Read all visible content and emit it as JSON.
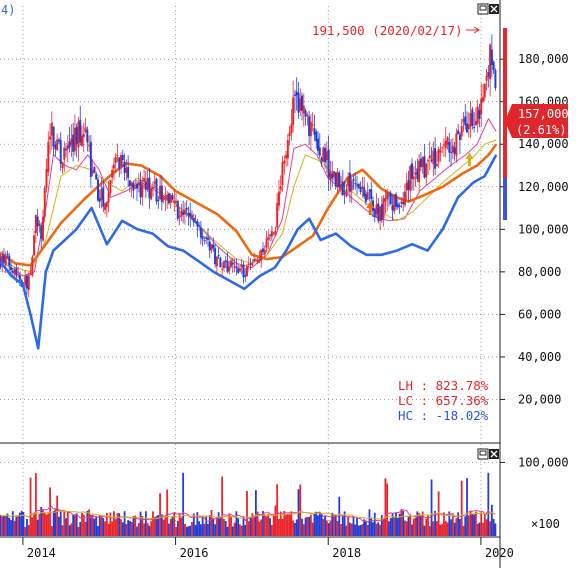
{
  "window": {
    "title_fragment": "4)",
    "buttons": [
      "restore-button",
      "close-button"
    ]
  },
  "chart_data": [
    {
      "type": "candlestick",
      "panel": "price",
      "yticks": [
        20000,
        40000,
        60000,
        80000,
        100000,
        120000,
        140000,
        160000,
        180000
      ],
      "ytick_labels": [
        "20,000",
        "40,000",
        "60,000",
        "80,000",
        "100,000",
        "120,000",
        "140,000",
        "160,000",
        "180,000"
      ],
      "ylim": [
        0,
        205000
      ],
      "xticks": [
        2014,
        2016,
        2018,
        2020
      ],
      "xtick_labels": [
        "2014",
        "2016",
        "2018",
        "2020"
      ],
      "xlim": [
        2013.7,
        2020.25
      ],
      "grid": true,
      "colors": {
        "up": "#e8262b",
        "down": "#1f3fd8",
        "ma_short": "#e23d9e",
        "ma_mid": "#d4b21a",
        "ma_long": "#ee6a12",
        "envelope": "#2e6ae6"
      },
      "series": [
        {
          "x": [
            2013.7,
            2013.85,
            2014.0,
            2014.1,
            2014.17,
            2014.25,
            2014.35,
            2014.5,
            2014.6,
            2014.8,
            2014.9,
            2015.0,
            2015.1,
            2015.25,
            2015.35,
            2015.5,
            2015.7,
            2015.9,
            2016.0,
            2016.3,
            2016.5,
            2016.7,
            2016.9,
            2017.1,
            2017.3,
            2017.55,
            2017.65,
            2017.8,
            2018.0,
            2018.2,
            2018.35,
            2018.5,
            2018.65,
            2018.8,
            2018.95,
            2019.1,
            2019.25,
            2019.45,
            2019.7,
            2019.85,
            2019.98,
            2020.05,
            2020.13,
            2020.17,
            2020.2
          ],
          "values": [
            86000,
            84000,
            75000,
            76000,
            105000,
            95000,
            150000,
            133000,
            138000,
            150000,
            127000,
            113000,
            117000,
            132000,
            128000,
            118000,
            120000,
            112000,
            110000,
            103000,
            88000,
            83000,
            80000,
            85000,
            100000,
            165000,
            155000,
            143000,
            130000,
            118000,
            125000,
            117000,
            106000,
            115000,
            110000,
            128000,
            129000,
            136000,
            142000,
            150000,
            159000,
            165000,
            182000,
            170000,
            157000
          ]
        },
        {
          "name": "",
          "x": [
            2013.7,
            2013.85,
            2014.0,
            2014.15,
            2014.3,
            2014.4,
            2014.55,
            2014.7,
            2014.85,
            2015.0,
            2015.15,
            2015.35,
            2015.55,
            2015.75,
            2016.0,
            2016.3,
            2016.55,
            2016.8,
            2017.0,
            2017.2,
            2017.4,
            2017.55,
            2017.7,
            2017.85,
            2018.0,
            2018.2,
            2018.4,
            2018.6,
            2018.8,
            2019.0,
            2019.2,
            2019.4,
            2019.6,
            2019.8,
            2019.95,
            2020.1,
            2020.2
          ],
          "values": [
            85000,
            82000,
            78000,
            80000,
            110000,
            135000,
            130000,
            128000,
            135000,
            128000,
            115000,
            118000,
            122000,
            118000,
            112000,
            102000,
            92000,
            84000,
            82000,
            88000,
            105000,
            138000,
            140000,
            135000,
            124000,
            118000,
            112000,
            106000,
            104000,
            105000,
            118000,
            124000,
            130000,
            135000,
            140000,
            152000,
            146000
          ]
        },
        {
          "name": "",
          "x": [
            2013.7,
            2013.9,
            2014.1,
            2014.3,
            2014.5,
            2014.7,
            2014.9,
            2015.1,
            2015.3,
            2015.5,
            2015.7,
            2016.0,
            2016.25,
            2016.5,
            2016.8,
            2017.0,
            2017.2,
            2017.4,
            2017.55,
            2017.7,
            2017.9,
            2018.1,
            2018.3,
            2018.5,
            2018.7,
            2018.9,
            2019.1,
            2019.3,
            2019.5,
            2019.7,
            2019.9,
            2020.05,
            2020.2
          ],
          "values": [
            86000,
            82000,
            80000,
            95000,
            125000,
            130000,
            128000,
            122000,
            118000,
            124000,
            121000,
            112000,
            104000,
            95000,
            86000,
            84000,
            88000,
            98000,
            120000,
            135000,
            132000,
            125000,
            118000,
            112000,
            108000,
            104000,
            108000,
            115000,
            122000,
            128000,
            134000,
            140000,
            142000
          ]
        },
        {
          "name": "",
          "x": [
            2013.7,
            2013.9,
            2014.1,
            2014.3,
            2014.5,
            2014.8,
            2015.1,
            2015.35,
            2015.55,
            2015.8,
            2016.0,
            2016.3,
            2016.55,
            2016.8,
            2017.0,
            2017.2,
            2017.4,
            2017.6,
            2017.8,
            2018.0,
            2018.25,
            2018.45,
            2018.7,
            2018.9,
            2019.05,
            2019.25,
            2019.5,
            2019.75,
            2019.95,
            2020.1,
            2020.2
          ],
          "values": [
            89000,
            84000,
            83000,
            93000,
            103000,
            114000,
            124000,
            131000,
            130000,
            125000,
            118000,
            112000,
            107000,
            99000,
            88000,
            86000,
            87000,
            92000,
            97000,
            110000,
            124000,
            128000,
            119000,
            115000,
            113000,
            116000,
            120000,
            126000,
            130000,
            135000,
            140000
          ]
        },
        {
          "name": "",
          "x": [
            2013.7,
            2013.85,
            2014.0,
            2014.1,
            2014.2,
            2014.3,
            2014.4,
            2014.55,
            2014.7,
            2014.9,
            2015.1,
            2015.3,
            2015.5,
            2015.7,
            2015.9,
            2016.1,
            2016.3,
            2016.5,
            2016.7,
            2016.9,
            2017.1,
            2017.3,
            2017.45,
            2017.6,
            2017.75,
            2017.9,
            2018.1,
            2018.3,
            2018.5,
            2018.7,
            2018.9,
            2019.1,
            2019.3,
            2019.5,
            2019.7,
            2019.9,
            2020.05,
            2020.2
          ],
          "values": [
            85000,
            78000,
            74000,
            60000,
            44000,
            80000,
            90000,
            95000,
            100000,
            110000,
            93000,
            104000,
            100000,
            98000,
            92000,
            90000,
            85000,
            80000,
            76000,
            72000,
            78000,
            82000,
            90000,
            100000,
            105000,
            95000,
            98000,
            92000,
            88000,
            88000,
            90000,
            93000,
            90000,
            100000,
            115000,
            122000,
            125000,
            135000
          ]
        }
      ],
      "annotations": {
        "peak": "191,500 (2020/02/17)",
        "current_price": "157,000",
        "current_change": "(2.61%)",
        "stats": [
          "LH : 823.78%",
          "LC : 657.36%",
          "HC : -18.02%"
        ]
      }
    },
    {
      "type": "bar",
      "panel": "volume",
      "yticks": [
        100000
      ],
      "ytick_labels": [
        "100,000"
      ],
      "multiplier_label": "×100",
      "ylim": [
        0,
        125000
      ],
      "xticks": [
        2014,
        2016,
        2018,
        2020
      ],
      "xtick_labels": [
        "2014",
        "2016",
        "2018",
        "2020"
      ],
      "grid": true
    }
  ]
}
